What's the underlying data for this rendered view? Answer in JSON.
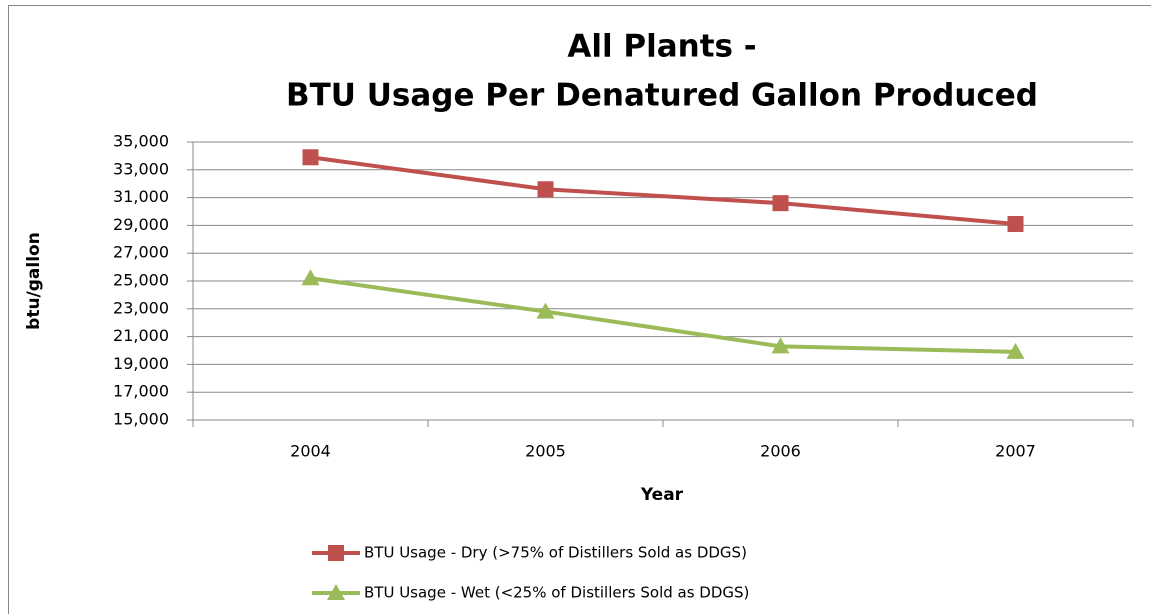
{
  "chart_data": {
    "type": "line",
    "title": [
      "All Plants -",
      "BTU Usage Per Denatured Gallon Produced"
    ],
    "x_label": "Year",
    "y_label": "btu/gallon",
    "categories": [
      "2004",
      "2005",
      "2006",
      "2007"
    ],
    "series": [
      {
        "name": "BTU Usage - Dry (>75% of Distillers Sold as DDGS)",
        "color": "#c0504d",
        "marker": "square",
        "values": [
          33900,
          31600,
          30600,
          29100
        ]
      },
      {
        "name": "BTU Usage - Wet (<25% of Distillers Sold as DDGS)",
        "color": "#9bbb59",
        "marker": "triangle",
        "values": [
          25200,
          22800,
          20300,
          19900
        ]
      }
    ],
    "ylim": [
      15000,
      35000
    ],
    "yticks": [
      {
        "value": 15000,
        "label": "15,000"
      },
      {
        "value": 17000,
        "label": "17,000"
      },
      {
        "value": 19000,
        "label": "19,000"
      },
      {
        "value": 21000,
        "label": "21,000"
      },
      {
        "value": 23000,
        "label": "23,000"
      },
      {
        "value": 25000,
        "label": "25,000"
      },
      {
        "value": 27000,
        "label": "27,000"
      },
      {
        "value": 29000,
        "label": "29,000"
      },
      {
        "value": 31000,
        "label": "31,000"
      },
      {
        "value": 33000,
        "label": "33,000"
      },
      {
        "value": 35000,
        "label": "35,000"
      }
    ],
    "grid": true,
    "legend": "bottom"
  }
}
